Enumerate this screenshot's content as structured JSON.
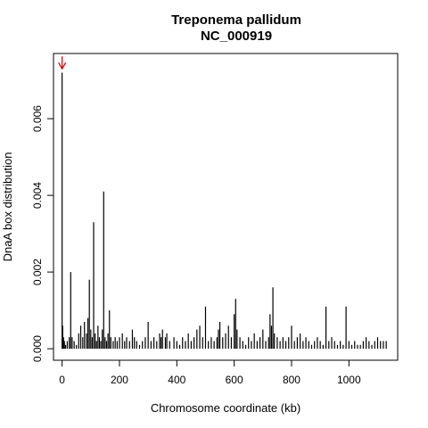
{
  "chart_data": {
    "type": "bar",
    "title": "Treponema pallidum",
    "subtitle": "NC_000919",
    "xlabel": "Chromosome coordinate (kb)",
    "ylabel": "DnaA box distribution",
    "xlim": [
      -30,
      1170
    ],
    "ylim": [
      -0.0003,
      0.0077
    ],
    "xticks": [
      0,
      200,
      400,
      600,
      800,
      1000
    ],
    "xtick_labels": [
      "0",
      "200",
      "400",
      "600",
      "800",
      "1000"
    ],
    "yticks": [
      0.0,
      0.002,
      0.004,
      0.006
    ],
    "ytick_labels": [
      "0.000",
      "0.002",
      "0.004",
      "0.006"
    ],
    "grid": false,
    "bar_color": "#000000",
    "marker": {
      "type": "arrow",
      "x": 0,
      "y": 0.0073,
      "color": "#cc0000"
    },
    "x": [
      0,
      2,
      5,
      8,
      12,
      18,
      25,
      30,
      35,
      42,
      50,
      58,
      65,
      72,
      78,
      85,
      90,
      95,
      100,
      105,
      110,
      115,
      120,
      125,
      130,
      135,
      140,
      145,
      150,
      155,
      160,
      165,
      170,
      178,
      185,
      192,
      200,
      210,
      218,
      225,
      235,
      245,
      252,
      260,
      270,
      280,
      290,
      300,
      310,
      320,
      330,
      340,
      345,
      350,
      360,
      365,
      375,
      390,
      400,
      410,
      420,
      430,
      440,
      450,
      460,
      470,
      480,
      490,
      500,
      510,
      520,
      530,
      540,
      545,
      550,
      560,
      570,
      580,
      590,
      600,
      605,
      610,
      620,
      630,
      640,
      650,
      660,
      670,
      680,
      690,
      700,
      710,
      720,
      725,
      730,
      735,
      740,
      750,
      760,
      770,
      780,
      790,
      800,
      810,
      820,
      830,
      840,
      850,
      860,
      870,
      880,
      890,
      900,
      910,
      920,
      930,
      940,
      950,
      960,
      970,
      980,
      990,
      1000,
      1010,
      1020,
      1030,
      1040,
      1050,
      1060,
      1070,
      1080,
      1090,
      1100,
      1110,
      1120,
      1130
    ],
    "values": [
      0.0072,
      0.0006,
      0.0003,
      0.0002,
      0.0001,
      0.0002,
      0.0003,
      0.002,
      0.0003,
      0.0002,
      0.0001,
      0.0004,
      0.0006,
      0.0003,
      0.0007,
      0.0004,
      0.0008,
      0.0018,
      0.0005,
      0.0003,
      0.0033,
      0.0004,
      0.0002,
      0.0006,
      0.0003,
      0.0002,
      0.0005,
      0.0041,
      0.0003,
      0.0002,
      0.0004,
      0.001,
      0.0003,
      0.0002,
      0.0003,
      0.0002,
      0.0003,
      0.0004,
      0.0002,
      0.0003,
      0.0002,
      0.0005,
      0.0003,
      0.0002,
      0.0001,
      0.0002,
      0.0003,
      0.0007,
      0.0002,
      0.0003,
      0.0002,
      0.0004,
      0.0003,
      0.0005,
      0.0003,
      0.0004,
      0.0002,
      0.0003,
      0.0002,
      0.0001,
      0.0003,
      0.0002,
      0.0004,
      0.0002,
      0.0003,
      0.0005,
      0.0006,
      0.0003,
      0.0011,
      0.0002,
      0.0003,
      0.0002,
      0.0003,
      0.0005,
      0.0007,
      0.0003,
      0.0004,
      0.0006,
      0.0003,
      0.0009,
      0.0013,
      0.0005,
      0.0003,
      0.0002,
      0.0001,
      0.0003,
      0.0002,
      0.0004,
      0.0002,
      0.0003,
      0.0005,
      0.0002,
      0.0003,
      0.0009,
      0.0006,
      0.0016,
      0.0004,
      0.0003,
      0.0002,
      0.0003,
      0.0002,
      0.0003,
      0.0006,
      0.0002,
      0.0003,
      0.0004,
      0.0002,
      0.0003,
      0.0002,
      0.0001,
      0.0002,
      0.0003,
      0.0002,
      0.0001,
      0.0011,
      0.0002,
      0.0003,
      0.0002,
      0.0001,
      0.0002,
      0.0001,
      0.0011,
      0.0002,
      0.0001,
      0.0002,
      0.0001,
      0.0001,
      0.0002,
      0.0003,
      0.0002,
      0.0001,
      0.0002,
      0.0003,
      0.0002,
      0.0002,
      0.0002
    ]
  }
}
